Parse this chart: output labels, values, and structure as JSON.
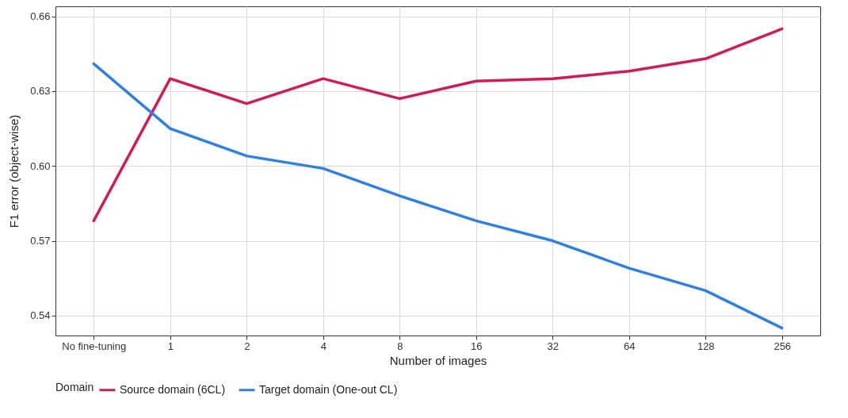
{
  "chart_data": {
    "type": "line",
    "xlabel": "Number of images",
    "ylabel": "F1 error (object-wise)",
    "legend_title": "Domain",
    "legend": "bottom",
    "grid": true,
    "categories": [
      "No fine-tuning",
      "1",
      "2",
      "4",
      "8",
      "16",
      "32",
      "64",
      "128",
      "256"
    ],
    "series": [
      {
        "name": "Source domain (6CL)",
        "color": "#d01c53",
        "values": [
          0.578,
          0.635,
          0.625,
          0.635,
          0.627,
          0.634,
          0.635,
          0.638,
          0.643,
          0.655
        ]
      },
      {
        "name": "Target domain (One-out CL)",
        "color": "#2f80e2",
        "values": [
          0.641,
          0.615,
          0.604,
          0.599,
          0.588,
          0.578,
          0.57,
          0.559,
          0.55,
          0.535
        ]
      }
    ],
    "ylim": [
      0.532,
      0.664
    ],
    "yticks": [
      {
        "value": 0.54,
        "label": "0.54"
      },
      {
        "value": 0.57,
        "label": "0.57"
      },
      {
        "value": 0.6,
        "label": "0.60"
      },
      {
        "value": 0.63,
        "label": "0.63"
      },
      {
        "value": 0.66,
        "label": "0.66"
      }
    ]
  }
}
